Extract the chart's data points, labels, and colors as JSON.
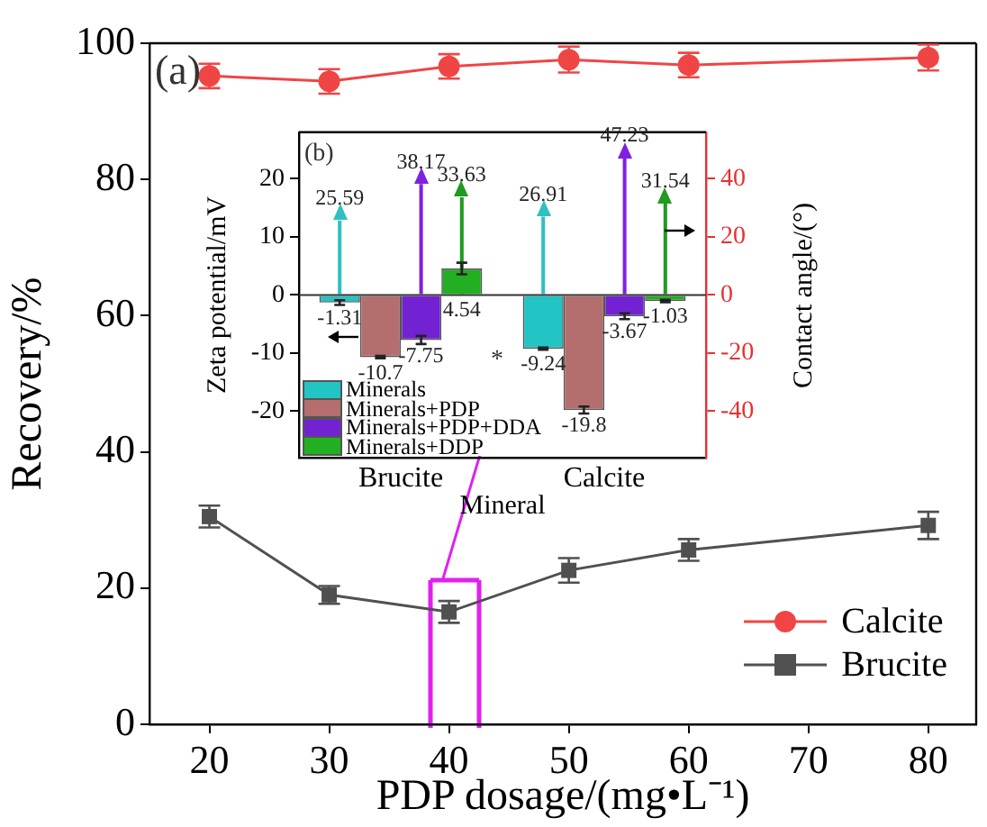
{
  "chart_data": [
    {
      "type": "line",
      "annotations": [
        "(a)"
      ],
      "xlabel": "PDP dosage/(mg•L⁻¹)",
      "ylabel": "Recovery/%",
      "x": [
        20,
        30,
        40,
        50,
        60,
        80
      ],
      "xlim": [
        15,
        84
      ],
      "xticks": [
        20,
        30,
        40,
        50,
        60,
        70,
        80
      ],
      "ylim": [
        0,
        100
      ],
      "yticks": [
        0,
        20,
        40,
        60,
        80,
        100
      ],
      "legend": "bottom right",
      "grid": false,
      "series": [
        {
          "name": "Calcite",
          "color": "#f04545",
          "marker": "circle",
          "values": [
            95.2,
            94.4,
            96.6,
            97.6,
            96.8,
            97.9
          ],
          "errors": [
            1.8,
            1.8,
            1.8,
            1.9,
            1.8,
            1.9
          ]
        },
        {
          "name": "Brucite",
          "color": "#505050",
          "marker": "square",
          "values": [
            30.5,
            19,
            16.5,
            22.6,
            25.6,
            29.2
          ],
          "errors": [
            1.6,
            1.3,
            1.6,
            1.8,
            1.6,
            2
          ]
        }
      ]
    },
    {
      "type": "bar",
      "annotations": [
        "(b)",
        "*"
      ],
      "xlabel": "Mineral",
      "ylabel": "Zeta potential/mV",
      "y2label": "Contact angle/(°)",
      "categories": [
        "Brucite",
        "Calcite"
      ],
      "ylim": [
        -28,
        28
      ],
      "yticks": [
        -20,
        -10,
        0,
        10,
        20
      ],
      "y2lim": [
        -56,
        56
      ],
      "y2ticks": [
        -40,
        -20,
        0,
        20,
        40
      ],
      "legend": "bottom left",
      "grid": false,
      "data_labels": true,
      "ref_lines": [
        {
          "axis": "y",
          "value": 0
        }
      ],
      "series": [
        {
          "name": "Minerals",
          "color": "#22c4c4",
          "values": [
            -1.31,
            -9.24
          ],
          "errors": [
            0.4,
            0.2
          ]
        },
        {
          "axis": "y2",
          "color": "#30c0c0",
          "values": [
            25.59,
            26.91
          ]
        },
        {
          "name": "Minerals+PDP",
          "color": "#b46e6e",
          "values": [
            -10.7,
            -19.8
          ],
          "errors": [
            0.2,
            0.6
          ]
        },
        {
          "name": "Minerals+PDP+DDA",
          "color": "#7222d2",
          "values": [
            -7.75,
            -3.67
          ],
          "errors": [
            0.7,
            0.5
          ]
        },
        {
          "axis": "y2",
          "color": "#8020e0",
          "values": [
            38.17,
            47.23
          ]
        },
        {
          "name": "Minerals+DDP",
          "color": "#22b022",
          "values": [
            4.54,
            -1.03
          ],
          "errors": [
            1,
            0.2
          ]
        },
        {
          "axis": "y2",
          "color": "#209a20",
          "values": [
            33.63,
            31.54
          ]
        }
      ]
    }
  ]
}
